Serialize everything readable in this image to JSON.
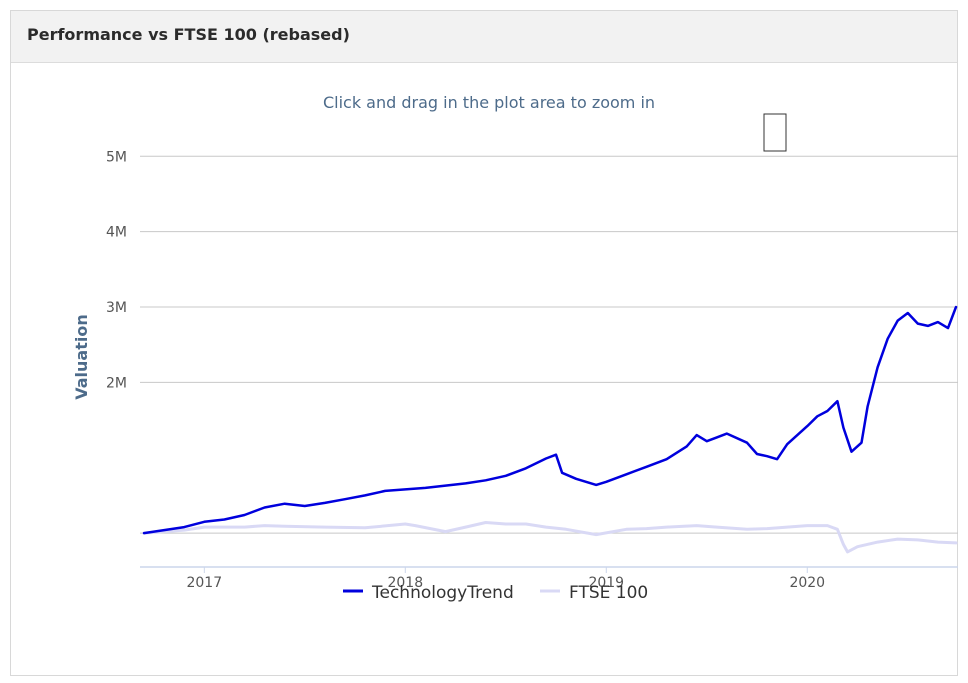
{
  "panel": {
    "title": "Performance vs FTSE 100 (rebased)"
  },
  "chart_data": {
    "type": "line",
    "title": "Click and drag in the plot area to zoom in",
    "ylabel": "Valuation",
    "xlabel": "",
    "ylim": [
      -0.45,
      5.15
    ],
    "y_ticks": [
      {
        "value": 2,
        "label": "2M"
      },
      {
        "value": 3,
        "label": "3M"
      },
      {
        "value": 4,
        "label": "4M"
      },
      {
        "value": 5,
        "label": "5M"
      }
    ],
    "x_range": [
      2016.68,
      2020.75
    ],
    "x_ticks": [
      {
        "value": 2017,
        "label": "2017"
      },
      {
        "value": 2018,
        "label": "2018"
      },
      {
        "value": 2019,
        "label": "2019"
      },
      {
        "value": 2020,
        "label": "2020"
      }
    ],
    "grid": true,
    "legend_position": "bottom-center",
    "series": [
      {
        "name": "TechnologyTrend",
        "color": "#0000dd",
        "points": [
          [
            2016.7,
            0.0
          ],
          [
            2016.8,
            0.04
          ],
          [
            2016.9,
            0.08
          ],
          [
            2017.0,
            0.15
          ],
          [
            2017.1,
            0.18
          ],
          [
            2017.2,
            0.24
          ],
          [
            2017.3,
            0.34
          ],
          [
            2017.4,
            0.39
          ],
          [
            2017.5,
            0.36
          ],
          [
            2017.6,
            0.4
          ],
          [
            2017.7,
            0.45
          ],
          [
            2017.8,
            0.5
          ],
          [
            2017.9,
            0.56
          ],
          [
            2018.0,
            0.58
          ],
          [
            2018.1,
            0.6
          ],
          [
            2018.2,
            0.63
          ],
          [
            2018.3,
            0.66
          ],
          [
            2018.4,
            0.7
          ],
          [
            2018.5,
            0.76
          ],
          [
            2018.6,
            0.86
          ],
          [
            2018.7,
            0.99
          ],
          [
            2018.75,
            1.04
          ],
          [
            2018.78,
            0.8
          ],
          [
            2018.85,
            0.72
          ],
          [
            2018.95,
            0.64
          ],
          [
            2019.0,
            0.68
          ],
          [
            2019.1,
            0.78
          ],
          [
            2019.2,
            0.88
          ],
          [
            2019.3,
            0.98
          ],
          [
            2019.4,
            1.15
          ],
          [
            2019.45,
            1.3
          ],
          [
            2019.5,
            1.22
          ],
          [
            2019.55,
            1.27
          ],
          [
            2019.6,
            1.32
          ],
          [
            2019.7,
            1.2
          ],
          [
            2019.75,
            1.05
          ],
          [
            2019.8,
            1.02
          ],
          [
            2019.85,
            0.98
          ],
          [
            2019.9,
            1.18
          ],
          [
            2020.0,
            1.42
          ],
          [
            2020.05,
            1.55
          ],
          [
            2020.1,
            1.62
          ],
          [
            2020.15,
            1.75
          ],
          [
            2020.18,
            1.4
          ],
          [
            2020.22,
            1.08
          ],
          [
            2020.27,
            1.2
          ],
          [
            2020.3,
            1.68
          ],
          [
            2020.35,
            2.2
          ],
          [
            2020.4,
            2.58
          ],
          [
            2020.45,
            2.82
          ],
          [
            2020.5,
            2.92
          ],
          [
            2020.55,
            2.78
          ],
          [
            2020.6,
            2.75
          ],
          [
            2020.65,
            2.8
          ],
          [
            2020.7,
            2.72
          ],
          [
            2020.74,
            3.0
          ]
        ]
      },
      {
        "name": "FTSE 100",
        "color": "#d9d9f5",
        "points": [
          [
            2016.7,
            0.0
          ],
          [
            2016.8,
            0.02
          ],
          [
            2016.9,
            0.04
          ],
          [
            2017.0,
            0.08
          ],
          [
            2017.2,
            0.08
          ],
          [
            2017.3,
            0.1
          ],
          [
            2017.4,
            0.09
          ],
          [
            2017.6,
            0.08
          ],
          [
            2017.8,
            0.07
          ],
          [
            2018.0,
            0.12
          ],
          [
            2018.05,
            0.1
          ],
          [
            2018.2,
            0.02
          ],
          [
            2018.3,
            0.08
          ],
          [
            2018.4,
            0.14
          ],
          [
            2018.5,
            0.12
          ],
          [
            2018.6,
            0.12
          ],
          [
            2018.7,
            0.08
          ],
          [
            2018.8,
            0.05
          ],
          [
            2018.95,
            -0.02
          ],
          [
            2019.1,
            0.05
          ],
          [
            2019.2,
            0.06
          ],
          [
            2019.3,
            0.08
          ],
          [
            2019.45,
            0.1
          ],
          [
            2019.55,
            0.08
          ],
          [
            2019.7,
            0.05
          ],
          [
            2019.8,
            0.06
          ],
          [
            2019.9,
            0.08
          ],
          [
            2020.0,
            0.1
          ],
          [
            2020.1,
            0.1
          ],
          [
            2020.15,
            0.05
          ],
          [
            2020.18,
            -0.15
          ],
          [
            2020.2,
            -0.25
          ],
          [
            2020.25,
            -0.18
          ],
          [
            2020.35,
            -0.12
          ],
          [
            2020.45,
            -0.08
          ],
          [
            2020.55,
            -0.09
          ],
          [
            2020.65,
            -0.12
          ],
          [
            2020.74,
            -0.13
          ]
        ]
      }
    ]
  }
}
